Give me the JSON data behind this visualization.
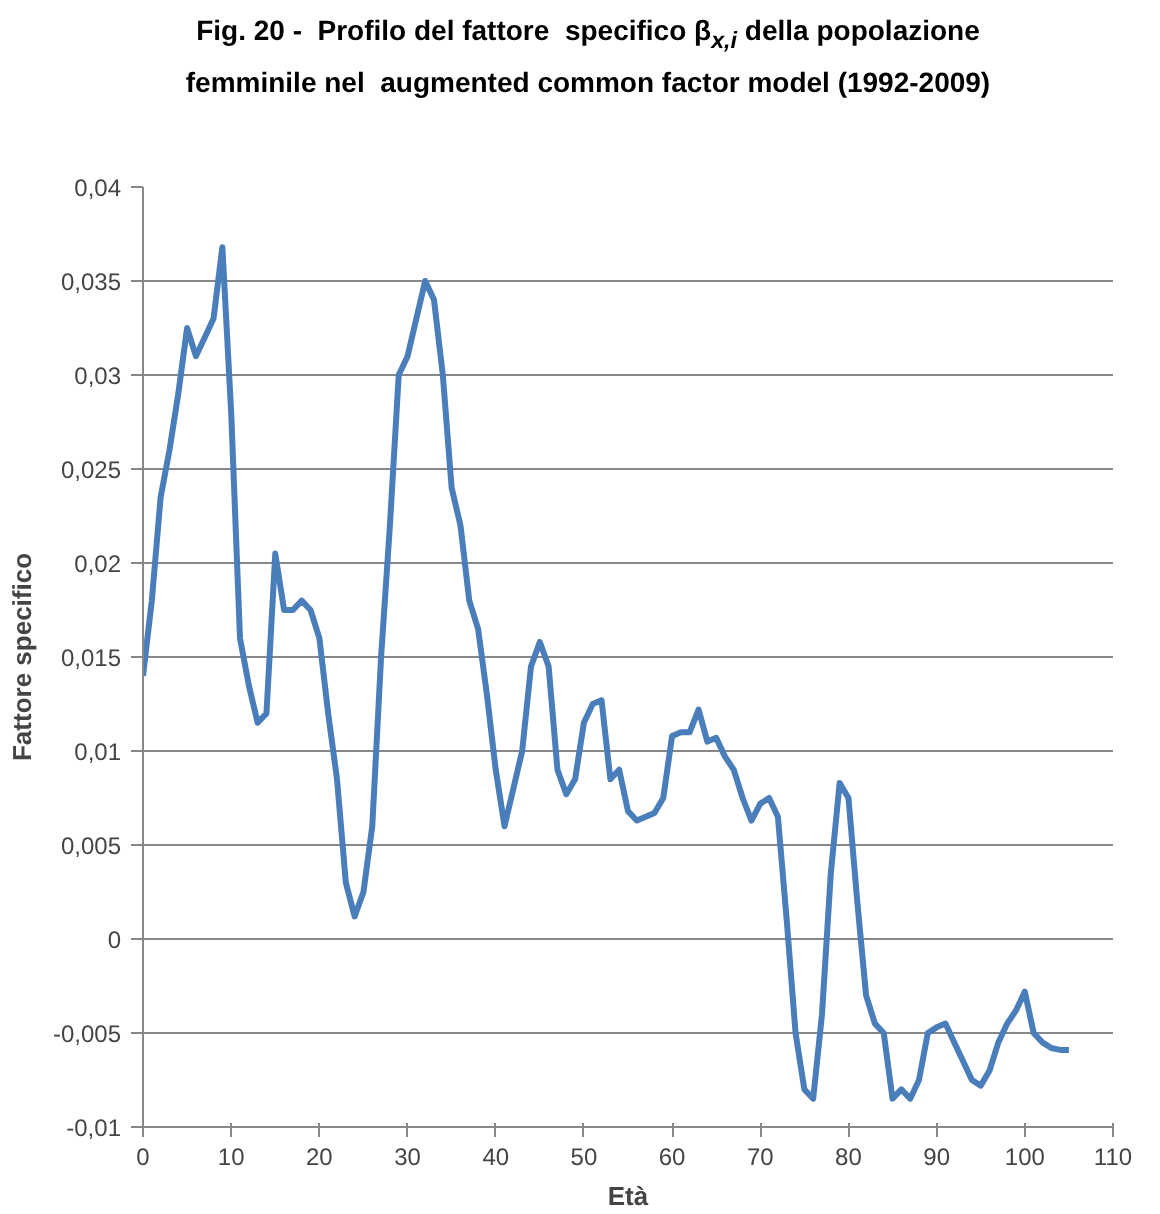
{
  "chart_data": {
    "type": "line",
    "title": "Fig. 20 -  Profilo del fattore  specifico β$_{x,i}$ della popolazione femminile nel  augmented common factor model (1992-2009)",
    "xlabel": "Età",
    "ylabel": "Fattore specifico",
    "x": [
      0,
      1,
      2,
      3,
      4,
      5,
      6,
      7,
      8,
      9,
      10,
      11,
      12,
      13,
      14,
      15,
      16,
      17,
      18,
      19,
      20,
      21,
      22,
      23,
      24,
      25,
      26,
      27,
      28,
      29,
      30,
      31,
      32,
      33,
      34,
      35,
      36,
      37,
      38,
      39,
      40,
      41,
      42,
      43,
      44,
      45,
      46,
      47,
      48,
      49,
      50,
      51,
      52,
      53,
      54,
      55,
      56,
      57,
      58,
      59,
      60,
      61,
      62,
      63,
      64,
      65,
      66,
      67,
      68,
      69,
      70,
      71,
      72,
      73,
      74,
      75,
      76,
      77,
      78,
      79,
      80,
      81,
      82,
      83,
      84,
      85,
      86,
      87,
      88,
      89,
      90,
      91,
      92,
      93,
      94,
      95,
      96,
      97,
      98,
      99,
      100,
      101,
      102,
      103,
      104,
      105
    ],
    "series": [
      {
        "color": "#4a7ebb",
        "values": [
          0.014,
          0.018,
          0.0235,
          0.026,
          0.029,
          0.0325,
          0.031,
          0.032,
          0.033,
          0.0368,
          0.028,
          0.016,
          0.0135,
          0.0115,
          0.012,
          0.0205,
          0.0175,
          0.0175,
          0.018,
          0.0175,
          0.016,
          0.012,
          0.0085,
          0.003,
          0.0012,
          0.0025,
          0.006,
          0.015,
          0.022,
          0.03,
          0.031,
          0.033,
          0.035,
          0.034,
          0.03,
          0.024,
          0.022,
          0.018,
          0.0165,
          0.013,
          0.009,
          0.006,
          0.008,
          0.01,
          0.0145,
          0.0158,
          0.0145,
          0.009,
          0.0077,
          0.0085,
          0.0115,
          0.0125,
          0.0127,
          0.0085,
          0.009,
          0.0068,
          0.0063,
          0.0065,
          0.0067,
          0.0075,
          0.0108,
          0.011,
          0.011,
          0.0122,
          0.0105,
          0.0107,
          0.0097,
          0.009,
          0.0075,
          0.0063,
          0.0072,
          0.0075,
          0.0065,
          0.001,
          -0.005,
          -0.008,
          -0.0085,
          -0.004,
          0.0035,
          0.0083,
          0.0075,
          0.002,
          -0.003,
          -0.0045,
          -0.005,
          -0.0085,
          -0.008,
          -0.0085,
          -0.0075,
          -0.005,
          -0.0047,
          -0.0045,
          -0.0055,
          -0.0065,
          -0.0075,
          -0.0078,
          -0.007,
          -0.0055,
          -0.0045,
          -0.0038,
          -0.0028,
          -0.005,
          -0.0055,
          -0.0058,
          -0.0059,
          -0.0059
        ]
      }
    ],
    "xlim": [
      0,
      110
    ],
    "xticks": [
      0,
      10,
      20,
      30,
      40,
      50,
      60,
      70,
      80,
      90,
      100,
      110
    ],
    "ylim": [
      -0.01,
      0.04
    ],
    "yticks": [
      {
        "value": -0.01,
        "label": "-0,01"
      },
      {
        "value": -0.005,
        "label": "-0,005"
      },
      {
        "value": 0,
        "label": "0"
      },
      {
        "value": 0.005,
        "label": "0,005"
      },
      {
        "value": 0.01,
        "label": "0,01"
      },
      {
        "value": 0.015,
        "label": "0,015"
      },
      {
        "value": 0.02,
        "label": "0,02"
      },
      {
        "value": 0.025,
        "label": "0,025"
      },
      {
        "value": 0.03,
        "label": "0,03"
      },
      {
        "value": 0.035,
        "label": "0,035"
      },
      {
        "value": 0.04,
        "label": "0,04"
      }
    ],
    "grid": "y",
    "marker": "none",
    "line_style": "solid"
  }
}
